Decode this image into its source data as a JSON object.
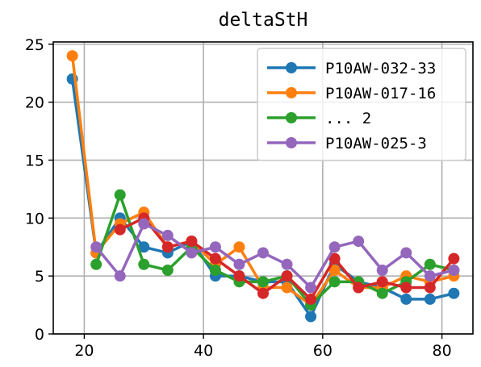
{
  "chart_data": {
    "type": "line",
    "title": "deltaStH",
    "xlabel": "",
    "ylabel": "",
    "xlim": [
      14.8,
      85.2
    ],
    "ylim": [
      0,
      25.2
    ],
    "xticks": [
      20,
      40,
      60,
      80
    ],
    "yticks": [
      0,
      5,
      10,
      15,
      20,
      25
    ],
    "grid": true,
    "legend_position": "top-right",
    "legend_entries": [
      "P10AW-032-33",
      "P10AW-017-16",
      "... 2",
      "P10AW-025-3"
    ],
    "series": [
      {
        "name": "P10AW-032-33",
        "color": "#1f77b4",
        "in_legend": true,
        "x": [
          18,
          22,
          26,
          30,
          34,
          38,
          42,
          46,
          50,
          54,
          58,
          62,
          66,
          70,
          74,
          78,
          82
        ],
        "y": [
          22,
          7,
          10,
          7.5,
          7,
          8,
          5,
          5,
          4.5,
          4.5,
          1.5,
          6,
          4.5,
          4,
          3,
          3,
          3.5
        ]
      },
      {
        "name": "P10AW-017-16",
        "color": "#ff7f0e",
        "in_legend": true,
        "x": [
          18,
          22,
          26,
          30,
          34,
          38,
          42,
          46,
          50,
          54,
          58,
          62,
          66,
          70,
          74,
          78,
          82
        ],
        "y": [
          24,
          7,
          9.5,
          10.5,
          7.5,
          8,
          6,
          7.5,
          4,
          4,
          2.5,
          5.5,
          4,
          4,
          5,
          4.5,
          5
        ]
      },
      {
        "name": "... 2",
        "color": "#2ca02c",
        "in_legend": true,
        "x": [
          22,
          26,
          30,
          34,
          38,
          42,
          46,
          50,
          54,
          58,
          62,
          66,
          70,
          74,
          78,
          82
        ],
        "y": [
          6,
          12,
          6,
          5.5,
          7.5,
          5.5,
          4.5,
          4.5,
          5,
          2.5,
          4.5,
          4.5,
          3.5,
          4.5,
          6,
          5.5
        ]
      },
      {
        "name": "",
        "color": "#d62728",
        "in_legend": false,
        "x": [
          26,
          30,
          34,
          38,
          42,
          46,
          50,
          54,
          58,
          62,
          66,
          70,
          74,
          78,
          82
        ],
        "y": [
          9,
          10,
          7.5,
          8,
          6.5,
          5,
          3.5,
          5,
          3,
          6.5,
          4,
          4.5,
          4,
          4,
          6.5
        ]
      },
      {
        "name": "P10AW-025-3",
        "color": "#9467bd",
        "in_legend": true,
        "x": [
          22,
          26,
          30,
          34,
          38,
          42,
          46,
          50,
          54,
          58,
          62,
          66,
          70,
          74,
          78,
          82
        ],
        "y": [
          7.5,
          5,
          9.5,
          8.5,
          7,
          7.5,
          6,
          7,
          6,
          4,
          7.5,
          8,
          5.5,
          7,
          5,
          5.5
        ]
      }
    ]
  }
}
